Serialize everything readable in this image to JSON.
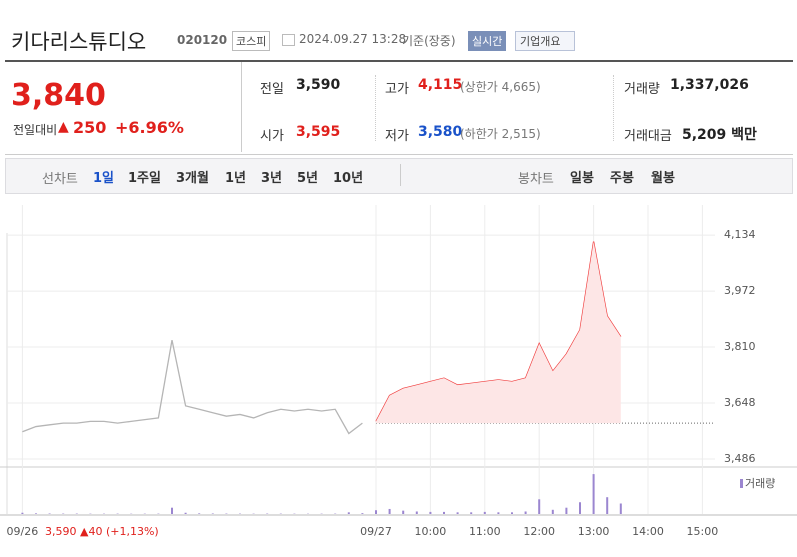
{
  "header": {
    "name": "키다리스튜디오",
    "code": "020120",
    "market": "코스피",
    "datetime": "2024.09.27 13:28",
    "basis": "기준(장중)",
    "realtime": "실시간",
    "company": "기업개요"
  },
  "summary": {
    "price": "3,840",
    "change_label": "전일대비",
    "change": "250",
    "change_pct": "+6.96%",
    "stats": [
      {
        "label": "전일",
        "value": "3,590"
      },
      {
        "label": "고가",
        "value": "4,115",
        "extra": "(상한가 4,665)"
      },
      {
        "label": "거래량",
        "value": "1,337,026"
      },
      {
        "label": "시가",
        "value": "3,595"
      },
      {
        "label": "저가",
        "value": "3,580",
        "extra": "(하한가 2,515)"
      },
      {
        "label": "거래대금",
        "value": "5,209 백만"
      }
    ]
  },
  "tabs": {
    "line_label": "선차트",
    "line": [
      "1일",
      "1주일",
      "3개월",
      "1년",
      "3년",
      "5년",
      "10년"
    ],
    "candle_label": "봉차트",
    "candle": [
      "일봉",
      "주봉",
      "월봉"
    ]
  },
  "chart": {
    "type": "line",
    "categories": [
      "09/26",
      null,
      null,
      null,
      null,
      null,
      null,
      null,
      null,
      null,
      null,
      null,
      null,
      null,
      null,
      null,
      null,
      null,
      null,
      null,
      null,
      null,
      null,
      null,
      null,
      null,
      "09/27",
      null,
      null,
      null,
      "10:00",
      null,
      null,
      null,
      "11:00",
      null,
      null,
      null,
      "12:00",
      null,
      null,
      null,
      "13:00",
      null,
      null,
      null,
      "14:00",
      null,
      null,
      null,
      "15:00",
      null,
      null
    ],
    "series": [
      {
        "color": "#b5b5b5",
        "values": [
          3565,
          3580,
          3585,
          3590,
          3590,
          3595,
          3595,
          3590,
          3595,
          3600,
          3605,
          3830,
          3640,
          3630,
          3620,
          3610,
          3615,
          3605,
          3620,
          3630,
          3625,
          3630,
          3625,
          3630,
          3560,
          3590,
          null,
          null,
          null,
          null,
          null,
          null,
          null,
          null,
          null,
          null,
          null,
          null,
          null,
          null,
          null,
          null,
          null,
          null,
          null,
          null,
          null,
          null,
          null,
          null,
          null,
          null,
          null
        ]
      },
      {
        "color": "#f03c3c",
        "fill": "#fde6e6",
        "values": [
          null,
          null,
          null,
          null,
          null,
          null,
          null,
          null,
          null,
          null,
          null,
          null,
          null,
          null,
          null,
          null,
          null,
          null,
          null,
          null,
          null,
          null,
          null,
          null,
          null,
          null,
          3595,
          3670,
          3690,
          3700,
          3710,
          3720,
          3700,
          3705,
          3710,
          3715,
          3710,
          3720,
          3820,
          3740,
          3790,
          3860,
          4115,
          3900,
          3840,
          null,
          null,
          null,
          null,
          null,
          null,
          null,
          null
        ]
      }
    ],
    "baseline": 3590,
    "ylim": [
      3463,
      4221
    ],
    "yticks": [
      {
        "value": 3486,
        "label": "3,486"
      },
      {
        "value": 3648,
        "label": "3,648"
      },
      {
        "value": 3810,
        "label": "3,810"
      },
      {
        "value": 3972,
        "label": "3,972"
      },
      {
        "value": 4134,
        "label": "4,134"
      }
    ],
    "grid": true,
    "prev_label": "3,590 ▲40 (+1,13%)",
    "volume": {
      "label": "거래량",
      "color": "#9b86d0",
      "ylim": [
        0,
        100000
      ],
      "values": [
        3000,
        1500,
        1200,
        1000,
        1000,
        800,
        800,
        900,
        700,
        800,
        900,
        15000,
        3000,
        1500,
        1200,
        1000,
        900,
        800,
        1000,
        900,
        800,
        700,
        800,
        900,
        4000,
        2000,
        9000,
        12000,
        8000,
        6000,
        5000,
        5000,
        4000,
        4000,
        5000,
        4000,
        4000,
        6000,
        35000,
        10000,
        15000,
        28000,
        95000,
        40000,
        25000,
        null,
        null,
        null,
        null,
        null,
        null,
        null,
        null
      ]
    }
  }
}
